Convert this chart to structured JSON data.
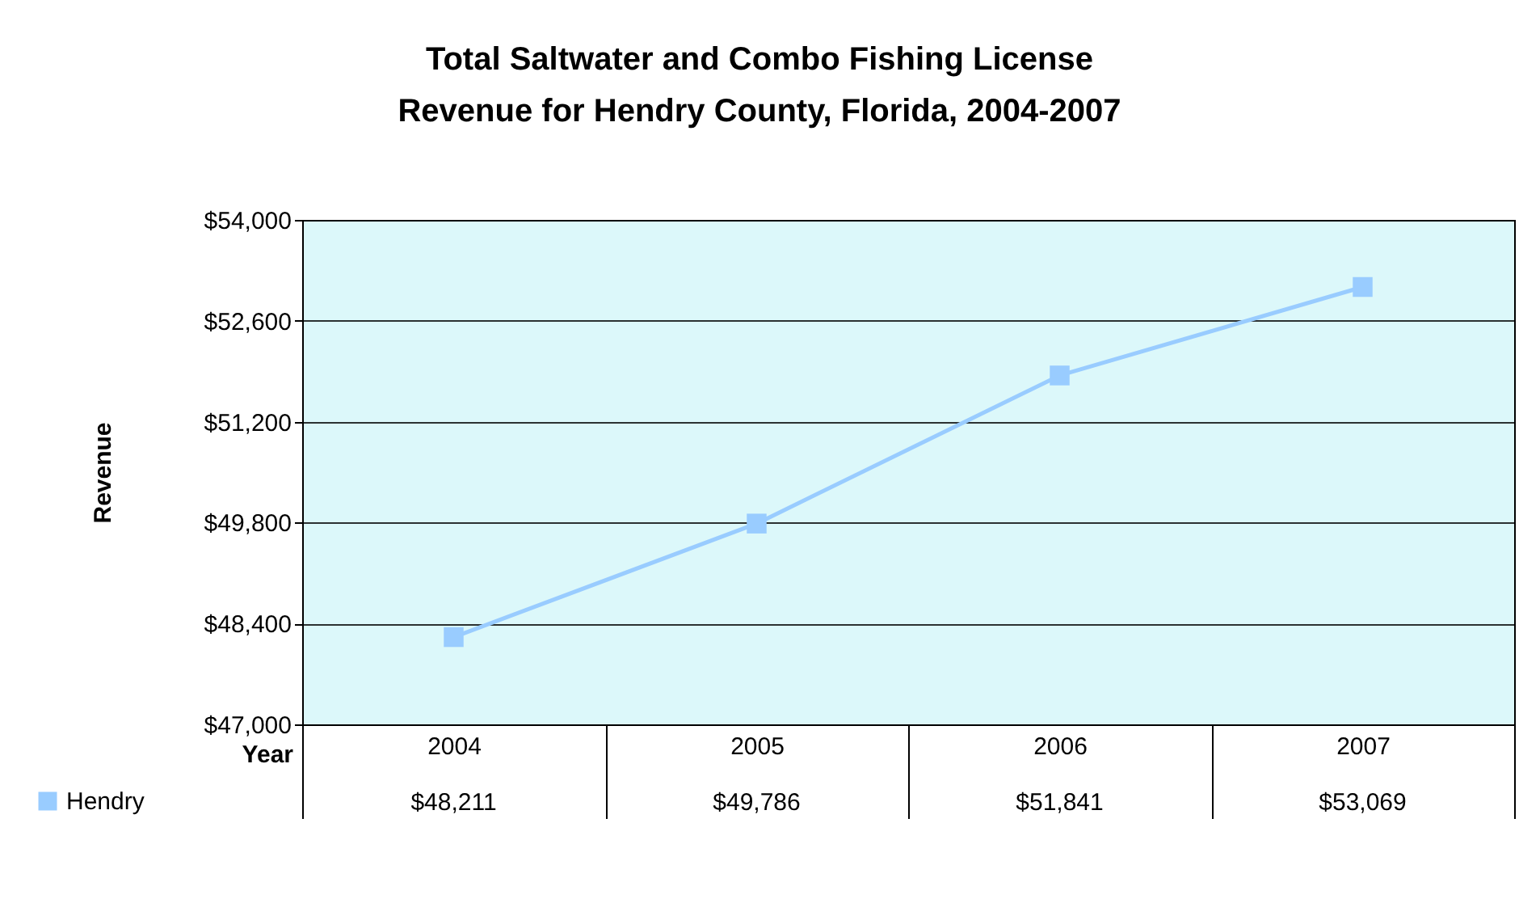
{
  "chart_data": {
    "type": "line",
    "title": "Total Saltwater and Combo Fishing License Revenue for Hendry County, Florida, 2004-2007",
    "xlabel": "Year",
    "ylabel": "Revenue",
    "categories": [
      "2004",
      "2005",
      "2006",
      "2007"
    ],
    "series": [
      {
        "name": "Hendry",
        "color": "#99ccff",
        "values": [
          48211,
          49786,
          51841,
          53069
        ],
        "value_labels": [
          "$48,211",
          "$49,786",
          "$51,841",
          "$53,069"
        ]
      }
    ],
    "ylim": [
      47000,
      54000
    ],
    "yticks": [
      {
        "value": 47000,
        "label": "$47,000"
      },
      {
        "value": 48400,
        "label": "$48,400"
      },
      {
        "value": 49800,
        "label": "$49,800"
      },
      {
        "value": 51200,
        "label": "$51,200"
      },
      {
        "value": 52600,
        "label": "$52,600"
      },
      {
        "value": 54000,
        "label": "$54,000"
      }
    ],
    "grid": "y",
    "legend": "bottom left",
    "marker": "square",
    "line_style": "solid"
  }
}
